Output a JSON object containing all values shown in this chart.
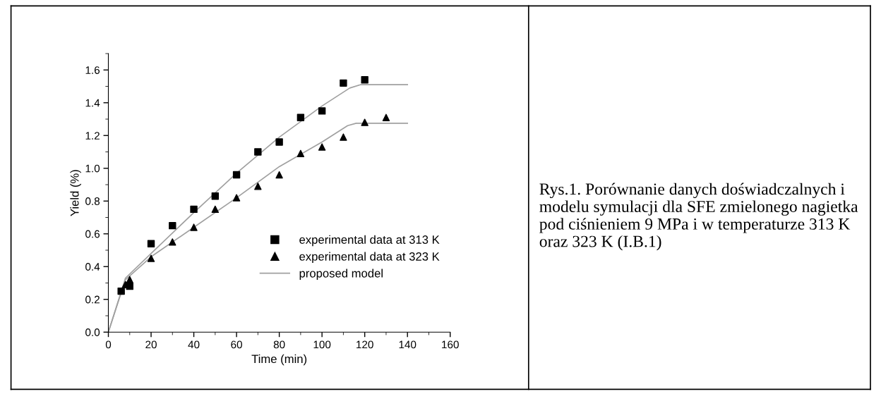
{
  "chart_data": {
    "type": "scatter",
    "xlabel": "Time (min)",
    "ylabel": "Yield (%)",
    "xlim": [
      0,
      160
    ],
    "ylim": [
      0,
      1.7
    ],
    "xticks": [
      0,
      20,
      40,
      60,
      80,
      100,
      120,
      140,
      160
    ],
    "yticks": [
      {
        "value": 0,
        "label": "0.0"
      },
      0.2,
      0.4,
      0.6,
      0.8,
      {
        "value": 1,
        "label": "1.0"
      },
      1.2,
      1.4,
      1.6
    ],
    "grid": false,
    "legend": "lower right",
    "series": [
      {
        "name": "experimental data at 313 K",
        "marker": "square",
        "color": "#000000",
        "x": [
          6,
          10,
          20,
          30,
          40,
          50,
          60,
          70,
          80,
          90,
          100,
          110,
          120
        ],
        "values": [
          0.25,
          0.28,
          0.54,
          0.65,
          0.75,
          0.83,
          0.96,
          1.1,
          1.16,
          1.31,
          1.35,
          1.52,
          1.54
        ]
      },
      {
        "name": "experimental data at 323 K",
        "marker": "triangle",
        "color": "#000000",
        "x": [
          8,
          10,
          20,
          30,
          40,
          50,
          60,
          70,
          80,
          90,
          100,
          110,
          120,
          130
        ],
        "values": [
          0.29,
          0.32,
          0.45,
          0.55,
          0.64,
          0.75,
          0.82,
          0.89,
          0.96,
          1.09,
          1.13,
          1.19,
          1.28,
          1.31
        ]
      },
      {
        "name": "proposed model",
        "type": "line",
        "marker": "none",
        "line_style": "solid",
        "color": "#a0a0a0",
        "x": [
          0,
          8,
          20,
          40,
          60,
          80,
          100,
          113,
          118,
          140
        ],
        "values": [
          0,
          0.33,
          0.48,
          0.73,
          0.97,
          1.19,
          1.38,
          1.49,
          1.51,
          1.51
        ]
      },
      {
        "type": "line",
        "marker": "none",
        "line_style": "solid",
        "color": "#a0a0a0",
        "x": [
          0,
          8,
          20,
          40,
          60,
          80,
          100,
          112,
          116,
          140
        ],
        "values": [
          0,
          0.32,
          0.46,
          0.64,
          0.82,
          1.01,
          1.16,
          1.26,
          1.275,
          1.275
        ]
      }
    ],
    "annotations": [
      "Rys.1. Porównanie danych doświadczalnych i modelu symulacji dla SFE zmielonego nagietka pod ciśnieniem 9 MPa i w temperaturze 313 K oraz 323 K (I.B.1)"
    ]
  }
}
